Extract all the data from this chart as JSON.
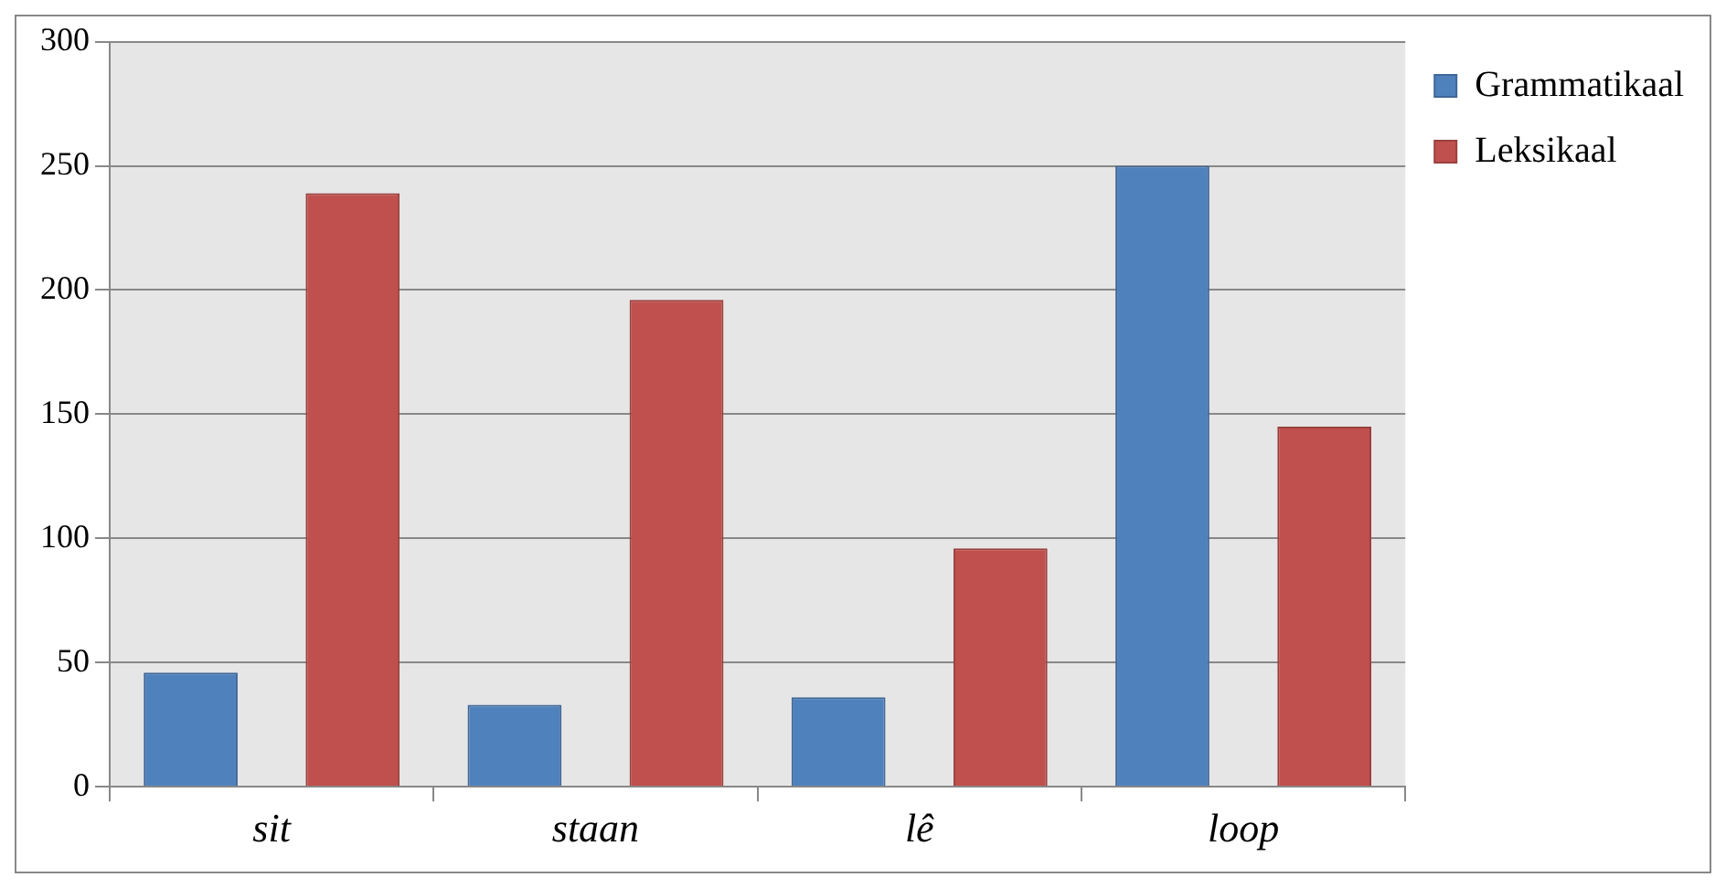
{
  "chart_data": {
    "type": "bar",
    "categories": [
      "sit",
      "staan",
      "lê",
      "loop"
    ],
    "series": [
      {
        "name": "Grammatikaal",
        "color": "#4f81bd",
        "values": [
          46,
          33,
          36,
          250
        ]
      },
      {
        "name": "Leksikaal",
        "color": "#c0504d",
        "values": [
          239,
          196,
          96,
          145
        ]
      }
    ],
    "ylim": [
      0,
      300
    ],
    "yticks": [
      0,
      50,
      100,
      150,
      200,
      250,
      300
    ],
    "grid": "y",
    "legend": "top right"
  }
}
